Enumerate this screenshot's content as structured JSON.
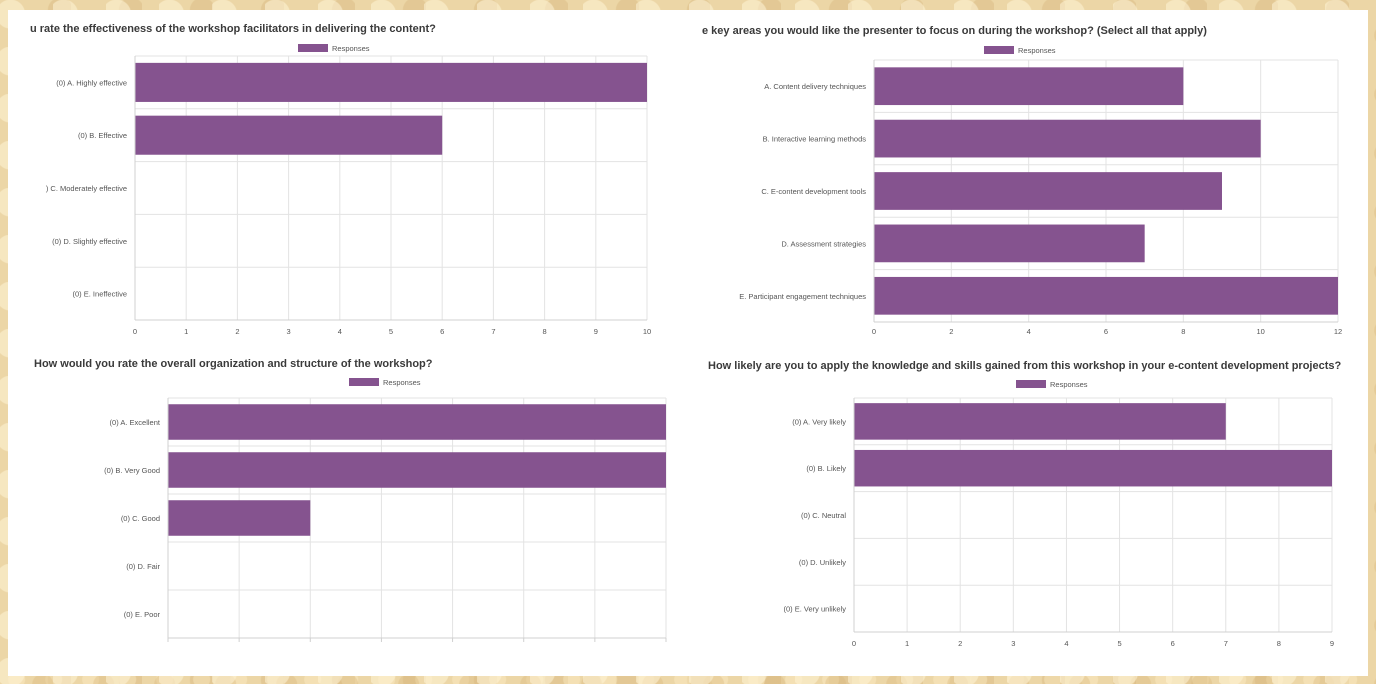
{
  "chart_data": [
    {
      "type": "bar",
      "orientation": "horizontal",
      "title": "u rate the effectiveness of the workshop facilitators in delivering the content?",
      "legend": "Responses",
      "legend_position": "top",
      "categories": [
        "(0) A. Highly effective",
        "(0) B. Effective",
        ") C. Moderately effective",
        "(0) D. Slightly effective",
        "(0) E. Ineffective"
      ],
      "series": [
        {
          "name": "Responses",
          "values": [
            10,
            6,
            0,
            0,
            0
          ]
        }
      ],
      "xticks": [
        "0",
        "1",
        "2",
        "3",
        "4",
        "5",
        "6",
        "7",
        "8",
        "9",
        "10"
      ],
      "xlim": [
        0,
        10
      ],
      "grid": true,
      "color": "#85538f"
    },
    {
      "type": "bar",
      "orientation": "horizontal",
      "title": "e key areas you would like the presenter to focus on during the workshop? (Select all that apply)",
      "legend": "Responses",
      "legend_position": "top",
      "categories": [
        "A. Content delivery techniques",
        "B. Interactive learning methods",
        "C. E-content development tools",
        "D. Assessment strategies",
        "E. Participant engagement techniques"
      ],
      "series": [
        {
          "name": "Responses",
          "values": [
            8,
            10,
            9,
            7,
            12
          ]
        }
      ],
      "xticks": [
        "0",
        "2",
        "4",
        "6",
        "8",
        "10",
        "12"
      ],
      "xlim": [
        0,
        12
      ],
      "grid": true,
      "color": "#85538f"
    },
    {
      "type": "bar",
      "orientation": "horizontal",
      "title": "How would you rate the overall organization and structure of the workshop?",
      "legend": "Responses",
      "legend_position": "top",
      "categories": [
        "(0) A. Excellent",
        "(0) B. Very Good",
        "(0) C. Good",
        "(0) D. Fair",
        "(0) E. Poor"
      ],
      "series": [
        {
          "name": "Responses",
          "values": [
            7,
            7,
            2,
            0,
            0
          ]
        }
      ],
      "xticks": [
        "",
        "",
        "",
        "",
        "",
        "",
        "",
        ""
      ],
      "xlim": [
        0,
        7
      ],
      "grid": true,
      "color": "#85538f"
    },
    {
      "type": "bar",
      "orientation": "horizontal",
      "title": "How likely are you to apply the knowledge and skills gained from this workshop in your e-content development projects?",
      "legend": "Responses",
      "legend_position": "top",
      "categories": [
        "(0) A. Very likely",
        "(0) B. Likely",
        "(0) C. Neutral",
        "(0) D. Unlikely",
        "(0) E. Very unlikely"
      ],
      "series": [
        {
          "name": "Responses",
          "values": [
            7,
            9,
            0,
            0,
            0
          ]
        }
      ],
      "xticks": [
        "0",
        "1",
        "2",
        "3",
        "4",
        "5",
        "6",
        "7",
        "8",
        "9"
      ],
      "xlim": [
        0,
        9
      ],
      "grid": true,
      "color": "#85538f"
    }
  ]
}
